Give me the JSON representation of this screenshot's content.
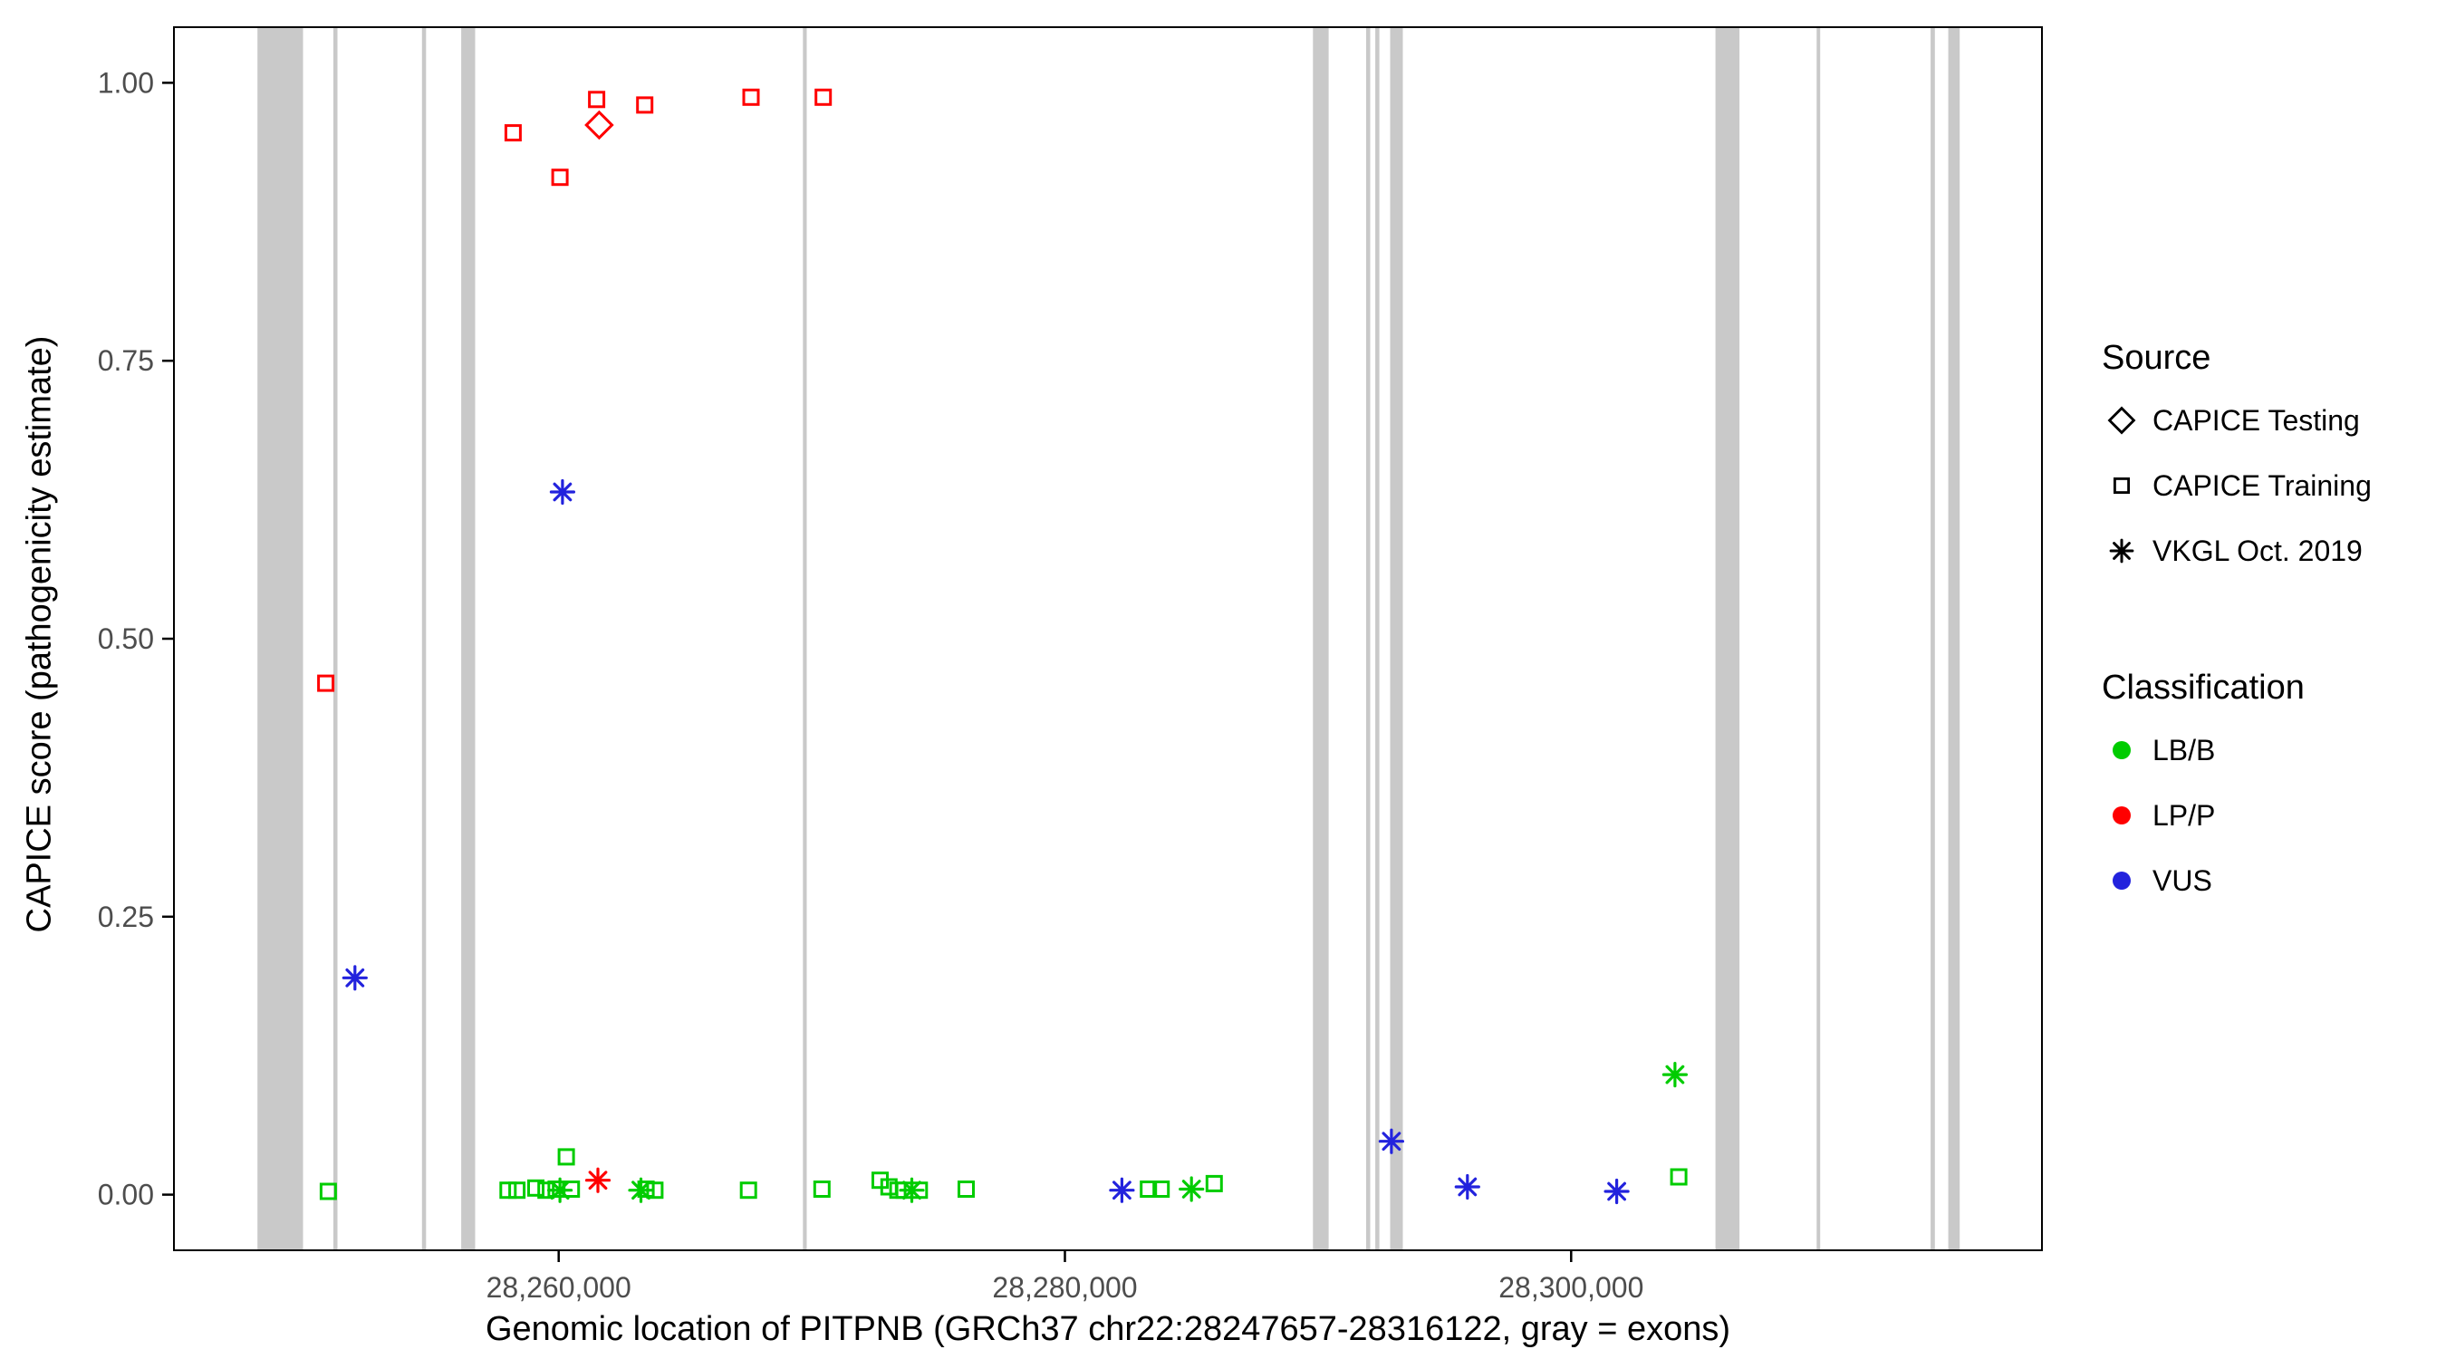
{
  "legend": {
    "source": {
      "title": "Source",
      "items": [
        {
          "shape": "diamond",
          "label": "CAPICE Testing"
        },
        {
          "shape": "square",
          "label": "CAPICE Training"
        },
        {
          "shape": "asterisk",
          "label": "VKGL Oct. 2019"
        }
      ]
    },
    "classification": {
      "title": "Classification",
      "items": [
        {
          "color": "#00CC00",
          "label": "LB/B"
        },
        {
          "color": "#FF0000",
          "label": "LP/P"
        },
        {
          "color": "#2222DD",
          "label": "VUS"
        }
      ]
    }
  },
  "chart_data": {
    "type": "scatter",
    "title": "",
    "xlabel": "Genomic location of PITPNB (GRCh37 chr22:28247657-28316122, gray = exons)",
    "ylabel": "CAPICE score (pathogenicity estimate)",
    "xlim": [
      28244800,
      28318600
    ],
    "ylim": [
      -0.05,
      1.05
    ],
    "grid": false,
    "legend_position": "right",
    "colors": {
      "LB/B": "#00CC00",
      "LP/P": "#FF0000",
      "VUS": "#2222DD",
      "exon": "#C9C9C9"
    },
    "x_ticks": [
      {
        "value": 28260000,
        "label": "28,260,000"
      },
      {
        "value": 28280000,
        "label": "28,280,000"
      },
      {
        "value": 28300000,
        "label": "28,300,000"
      }
    ],
    "y_ticks": [
      {
        "value": 1.0,
        "label": "1.00"
      },
      {
        "value": 0.75,
        "label": "0.75"
      },
      {
        "value": 0.5,
        "label": "0.50"
      },
      {
        "value": 0.25,
        "label": "0.25"
      },
      {
        "value": 0.0,
        "label": "0.00"
      }
    ],
    "exons": [
      [
        28248100,
        28249900
      ],
      [
        28251100,
        28251260
      ],
      [
        28254600,
        28254760
      ],
      [
        28256150,
        28256700
      ],
      [
        28269650,
        28269800
      ],
      [
        28289800,
        28290420
      ],
      [
        28291900,
        28292060
      ],
      [
        28292260,
        28292420
      ],
      [
        28292850,
        28293350
      ],
      [
        28305700,
        28306650
      ],
      [
        28309700,
        28309840
      ],
      [
        28314200,
        28314370
      ],
      [
        28314900,
        28315350
      ]
    ],
    "points": [
      {
        "x": 28250800,
        "y": 0.46,
        "shape": "square",
        "cls": "LP/P",
        "source": "CAPICE Training"
      },
      {
        "x": 28258200,
        "y": 0.955,
        "shape": "square",
        "cls": "LP/P",
        "source": "CAPICE Training"
      },
      {
        "x": 28260050,
        "y": 0.915,
        "shape": "square",
        "cls": "LP/P",
        "source": "CAPICE Training"
      },
      {
        "x": 28261500,
        "y": 0.985,
        "shape": "square",
        "cls": "LP/P",
        "source": "CAPICE Training"
      },
      {
        "x": 28263400,
        "y": 0.98,
        "shape": "square",
        "cls": "LP/P",
        "source": "CAPICE Training"
      },
      {
        "x": 28267600,
        "y": 0.987,
        "shape": "square",
        "cls": "LP/P",
        "source": "CAPICE Training"
      },
      {
        "x": 28270450,
        "y": 0.987,
        "shape": "square",
        "cls": "LP/P",
        "source": "CAPICE Training"
      },
      {
        "x": 28261600,
        "y": 0.962,
        "shape": "diamond",
        "cls": "LP/P",
        "source": "CAPICE Testing"
      },
      {
        "x": 28261550,
        "y": 0.013,
        "shape": "asterisk",
        "cls": "LP/P",
        "source": "VKGL Oct. 2019"
      },
      {
        "x": 28251950,
        "y": 0.195,
        "shape": "asterisk",
        "cls": "VUS",
        "source": "VKGL Oct. 2019"
      },
      {
        "x": 28260150,
        "y": 0.632,
        "shape": "asterisk",
        "cls": "VUS",
        "source": "VKGL Oct. 2019"
      },
      {
        "x": 28282250,
        "y": 0.004,
        "shape": "asterisk",
        "cls": "VUS",
        "source": "VKGL Oct. 2019"
      },
      {
        "x": 28292900,
        "y": 0.048,
        "shape": "asterisk",
        "cls": "VUS",
        "source": "VKGL Oct. 2019"
      },
      {
        "x": 28295900,
        "y": 0.007,
        "shape": "asterisk",
        "cls": "VUS",
        "source": "VKGL Oct. 2019"
      },
      {
        "x": 28301800,
        "y": 0.003,
        "shape": "asterisk",
        "cls": "VUS",
        "source": "VKGL Oct. 2019"
      },
      {
        "x": 28260050,
        "y": 0.004,
        "shape": "asterisk",
        "cls": "LB/B",
        "source": "VKGL Oct. 2019"
      },
      {
        "x": 28263250,
        "y": 0.004,
        "shape": "asterisk",
        "cls": "LB/B",
        "source": "VKGL Oct. 2019"
      },
      {
        "x": 28273950,
        "y": 0.004,
        "shape": "asterisk",
        "cls": "LB/B",
        "source": "VKGL Oct. 2019"
      },
      {
        "x": 28285000,
        "y": 0.005,
        "shape": "asterisk",
        "cls": "LB/B",
        "source": "VKGL Oct. 2019"
      },
      {
        "x": 28304100,
        "y": 0.108,
        "shape": "asterisk",
        "cls": "LB/B",
        "source": "VKGL Oct. 2019"
      },
      {
        "x": 28250900,
        "y": 0.003,
        "shape": "square",
        "cls": "LB/B",
        "source": "CAPICE Training"
      },
      {
        "x": 28258000,
        "y": 0.004,
        "shape": "square",
        "cls": "LB/B",
        "source": "CAPICE Training"
      },
      {
        "x": 28258350,
        "y": 0.004,
        "shape": "square",
        "cls": "LB/B",
        "source": "CAPICE Training"
      },
      {
        "x": 28259100,
        "y": 0.006,
        "shape": "square",
        "cls": "LB/B",
        "source": "CAPICE Training"
      },
      {
        "x": 28259500,
        "y": 0.004,
        "shape": "square",
        "cls": "LB/B",
        "source": "CAPICE Training"
      },
      {
        "x": 28259900,
        "y": 0.005,
        "shape": "square",
        "cls": "LB/B",
        "source": "CAPICE Training"
      },
      {
        "x": 28260300,
        "y": 0.034,
        "shape": "square",
        "cls": "LB/B",
        "source": "CAPICE Training"
      },
      {
        "x": 28260500,
        "y": 0.005,
        "shape": "square",
        "cls": "LB/B",
        "source": "CAPICE Training"
      },
      {
        "x": 28263450,
        "y": 0.005,
        "shape": "square",
        "cls": "LB/B",
        "source": "CAPICE Training"
      },
      {
        "x": 28263800,
        "y": 0.004,
        "shape": "square",
        "cls": "LB/B",
        "source": "CAPICE Training"
      },
      {
        "x": 28267500,
        "y": 0.004,
        "shape": "square",
        "cls": "LB/B",
        "source": "CAPICE Training"
      },
      {
        "x": 28270400,
        "y": 0.005,
        "shape": "square",
        "cls": "LB/B",
        "source": "CAPICE Training"
      },
      {
        "x": 28272700,
        "y": 0.013,
        "shape": "square",
        "cls": "LB/B",
        "source": "CAPICE Training"
      },
      {
        "x": 28273050,
        "y": 0.007,
        "shape": "square",
        "cls": "LB/B",
        "source": "CAPICE Training"
      },
      {
        "x": 28273400,
        "y": 0.004,
        "shape": "square",
        "cls": "LB/B",
        "source": "CAPICE Training"
      },
      {
        "x": 28273650,
        "y": 0.004,
        "shape": "square",
        "cls": "LB/B",
        "source": "CAPICE Training"
      },
      {
        "x": 28274250,
        "y": 0.004,
        "shape": "square",
        "cls": "LB/B",
        "source": "CAPICE Training"
      },
      {
        "x": 28276100,
        "y": 0.005,
        "shape": "square",
        "cls": "LB/B",
        "source": "CAPICE Training"
      },
      {
        "x": 28283300,
        "y": 0.005,
        "shape": "square",
        "cls": "LB/B",
        "source": "CAPICE Training"
      },
      {
        "x": 28283800,
        "y": 0.005,
        "shape": "square",
        "cls": "LB/B",
        "source": "CAPICE Training"
      },
      {
        "x": 28285900,
        "y": 0.01,
        "shape": "square",
        "cls": "LB/B",
        "source": "CAPICE Training"
      },
      {
        "x": 28304250,
        "y": 0.016,
        "shape": "square",
        "cls": "LB/B",
        "source": "CAPICE Training"
      }
    ]
  }
}
